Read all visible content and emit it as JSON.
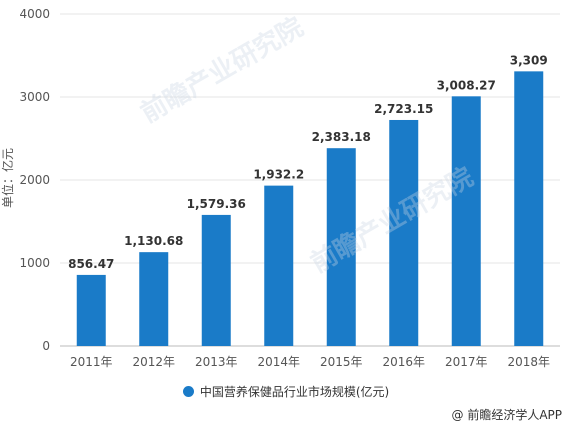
{
  "chart_data": {
    "type": "bar",
    "categories": [
      "2011年",
      "2012年",
      "2013年",
      "2014年",
      "2015年",
      "2016年",
      "2017年",
      "2018年"
    ],
    "values": [
      856.47,
      1130.68,
      1579.36,
      1932.2,
      2383.18,
      2723.15,
      3008.27,
      3309
    ],
    "value_labels": [
      "856.47",
      "1,130.68",
      "1,579.36",
      "1,932.2",
      "2,383.18",
      "2,723.15",
      "3,008.27",
      "3,309"
    ],
    "yticks": [
      "0",
      "1000",
      "2000",
      "3000",
      "4000"
    ],
    "ylim": [
      0,
      4000
    ],
    "ylabel": "单位：亿元",
    "grid": true,
    "legend_position": "bottom",
    "series": [
      {
        "name": "中国营养保健品行业市场规模(亿元)",
        "color": "#1a7bc8"
      }
    ]
  },
  "watermark": "前瞻产业研究院",
  "source": "@ 前瞻经济学人APP"
}
